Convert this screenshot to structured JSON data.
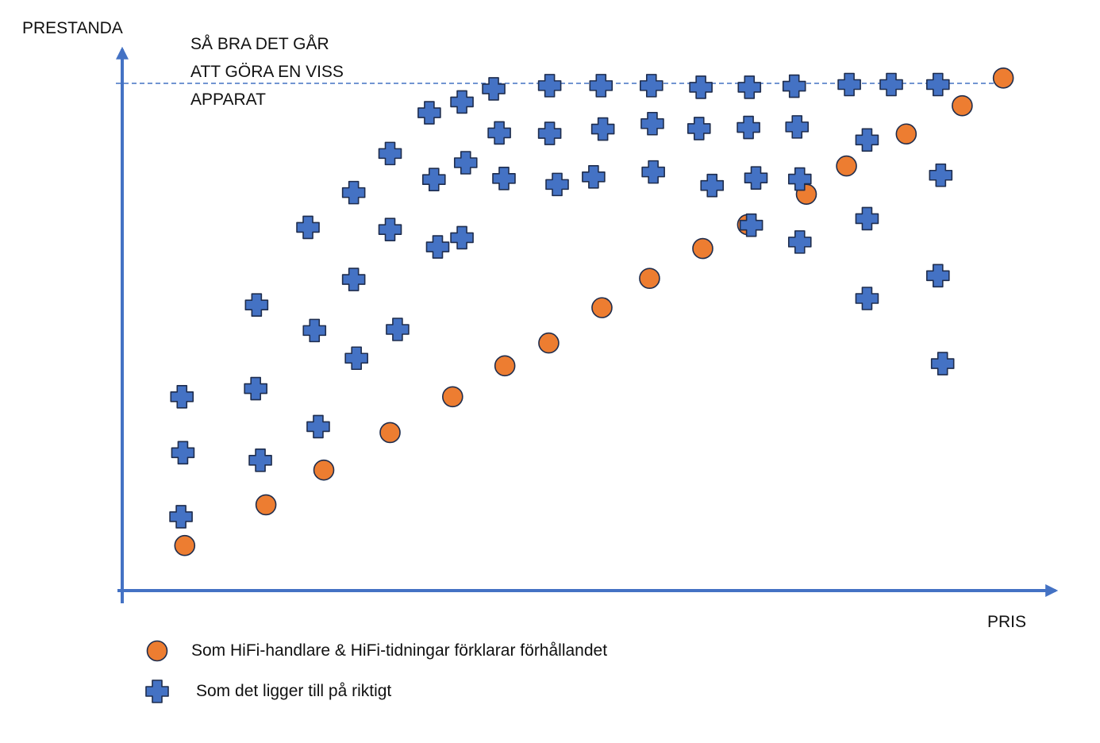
{
  "chart_data": {
    "type": "scatter",
    "xlabel": "PRIS",
    "ylabel": "PRESTANDA",
    "xlim": [
      0,
      100
    ],
    "ylim": [
      0,
      100
    ],
    "grid": false,
    "legend_position": "bottom-left",
    "annotation": {
      "lines": [
        "SÅ BRA DET GÅR",
        "ATT GÖRA EN VISS",
        "APPARAT"
      ],
      "y": 98
    },
    "series": [
      {
        "name": "Som HiFi-handlare & HiFi-tidningar förklarar förhållandet",
        "marker": "circle",
        "color": "#ed7d31",
        "points": [
          [
            6.7,
            8.3
          ],
          [
            15.4,
            15.8
          ],
          [
            21.6,
            22.2
          ],
          [
            28.7,
            29.1
          ],
          [
            35.4,
            35.7
          ],
          [
            41.0,
            41.4
          ],
          [
            45.7,
            45.6
          ],
          [
            51.4,
            52.1
          ],
          [
            56.5,
            57.5
          ],
          [
            62.2,
            63.0
          ],
          [
            67.0,
            67.4
          ],
          [
            73.3,
            73.0
          ],
          [
            77.6,
            78.2
          ],
          [
            84.0,
            84.1
          ],
          [
            90.0,
            89.3
          ],
          [
            94.4,
            94.4
          ]
        ]
      },
      {
        "name": "Som det ligger till på riktigt",
        "marker": "cross",
        "color": "#4472c4",
        "points": [
          [
            6.4,
            35.7
          ],
          [
            6.5,
            25.4
          ],
          [
            6.3,
            13.6
          ],
          [
            14.4,
            52.6
          ],
          [
            14.3,
            37.2
          ],
          [
            14.8,
            24.0
          ],
          [
            19.9,
            66.9
          ],
          [
            20.6,
            47.9
          ],
          [
            21.0,
            30.2
          ],
          [
            24.8,
            73.3
          ],
          [
            24.8,
            57.3
          ],
          [
            25.1,
            42.8
          ],
          [
            28.7,
            80.5
          ],
          [
            28.7,
            66.5
          ],
          [
            29.5,
            48.1
          ],
          [
            32.9,
            88.0
          ],
          [
            33.4,
            75.7
          ],
          [
            33.8,
            63.3
          ],
          [
            36.4,
            90.0
          ],
          [
            36.8,
            78.8
          ],
          [
            36.4,
            65.0
          ],
          [
            39.8,
            92.4
          ],
          [
            40.4,
            84.3
          ],
          [
            40.9,
            75.9
          ],
          [
            45.8,
            93.0
          ],
          [
            45.8,
            84.2
          ],
          [
            46.6,
            74.8
          ],
          [
            51.3,
            93.0
          ],
          [
            51.5,
            85.0
          ],
          [
            50.5,
            76.2
          ],
          [
            56.7,
            93.0
          ],
          [
            56.8,
            86.0
          ],
          [
            56.9,
            77.1
          ],
          [
            62.0,
            92.7
          ],
          [
            61.8,
            85.1
          ],
          [
            63.2,
            74.6
          ],
          [
            67.2,
            92.7
          ],
          [
            67.1,
            85.3
          ],
          [
            67.9,
            76.0
          ],
          [
            67.4,
            67.3
          ],
          [
            72.0,
            92.9
          ],
          [
            72.3,
            85.4
          ],
          [
            72.6,
            75.8
          ],
          [
            72.6,
            64.2
          ],
          [
            77.9,
            93.2
          ],
          [
            79.8,
            83.0
          ],
          [
            79.8,
            68.5
          ],
          [
            79.8,
            53.8
          ],
          [
            82.4,
            93.2
          ],
          [
            87.4,
            93.2
          ],
          [
            87.7,
            76.5
          ],
          [
            87.4,
            58.0
          ],
          [
            87.9,
            41.8
          ]
        ]
      }
    ]
  },
  "legend": [
    {
      "label": "Som HiFi-handlare & HiFi-tidningar förklarar förhållandet",
      "marker": "circle-icon"
    },
    {
      "label": "Som det ligger till på riktigt",
      "marker": "cross-icon"
    }
  ],
  "colors": {
    "axis": "#4472c4",
    "circle": "#ed7d31",
    "cross": "#4472c4",
    "outline": "#1f2d4d"
  }
}
